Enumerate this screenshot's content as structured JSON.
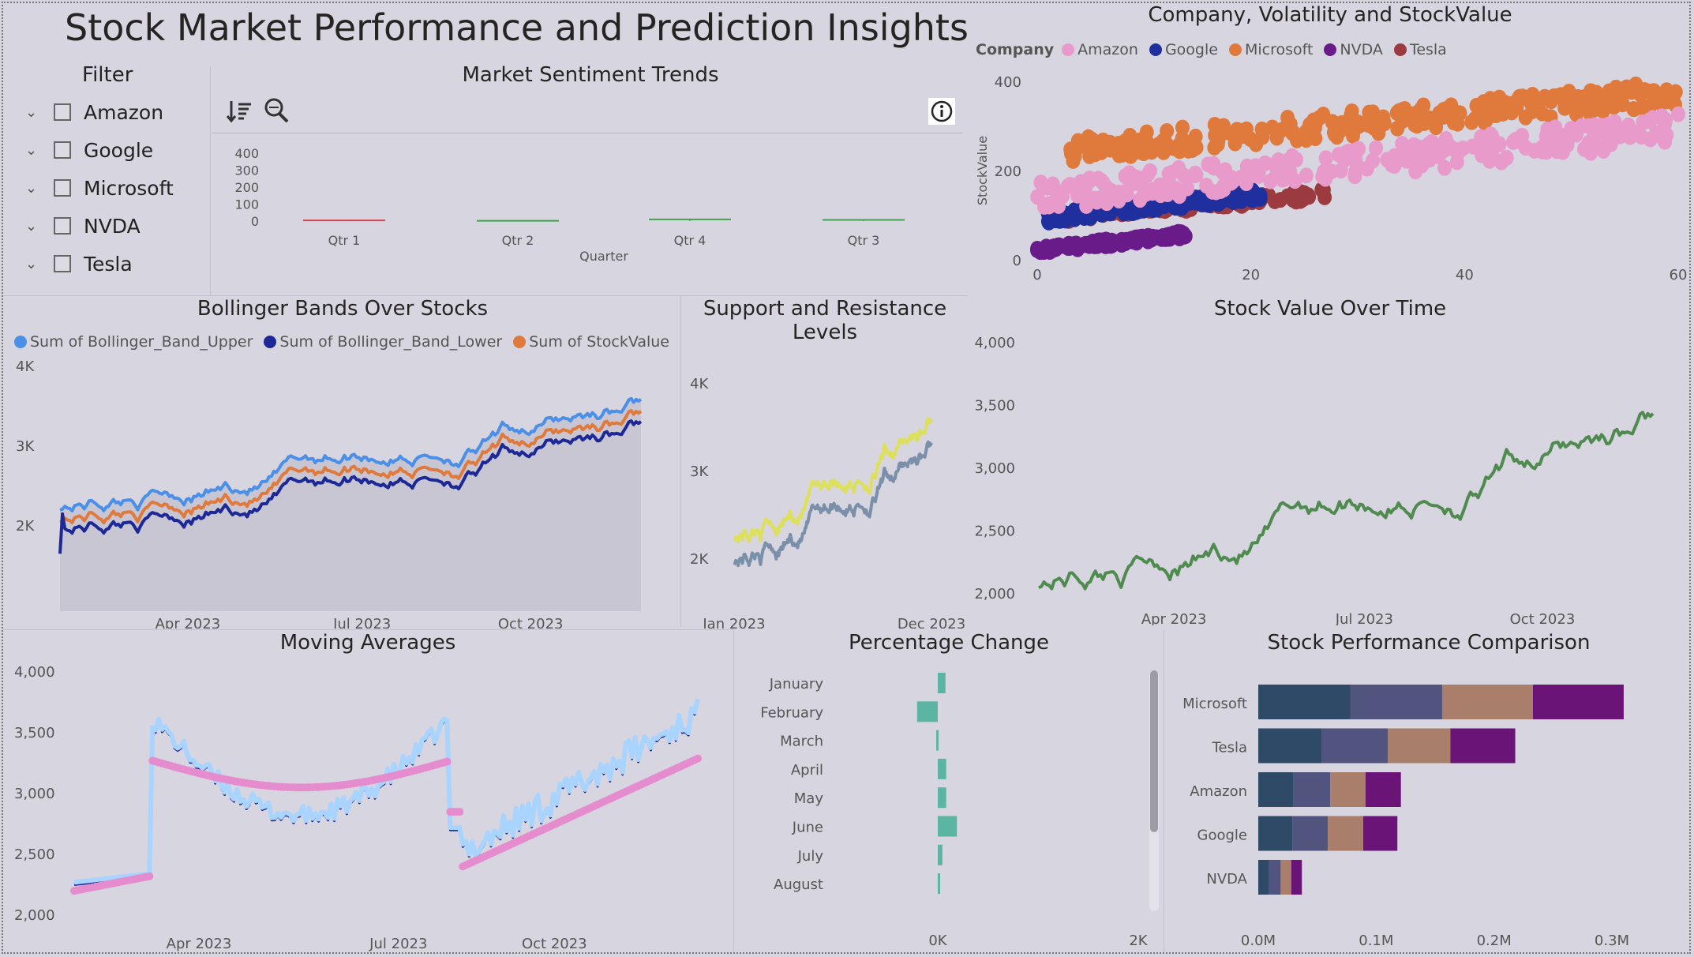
{
  "page_title": "Stock Market Performance and Prediction Insights",
  "filter": {
    "title": "Filter",
    "items": [
      "Amazon",
      "Google",
      "Microsoft",
      "NVDA",
      "Tesla"
    ]
  },
  "sentiment": {
    "title": "Market Sentiment Trends",
    "toolbar": {
      "sort_icon": "sort-descending-icon",
      "zoom_icon": "zoom-icon",
      "info_icon": "info-icon"
    },
    "x_title": "Quarter",
    "y_ticks": [
      "400",
      "300",
      "200",
      "100",
      "0"
    ],
    "categories": [
      "Qtr 1",
      "Qtr 2",
      "Qtr 4",
      "Qtr 3"
    ],
    "values": [
      4,
      2,
      10,
      7
    ],
    "colors": [
      "#d64550",
      "#3fa34d",
      "#3fa34d",
      "#3fa34d"
    ]
  },
  "volatility": {
    "title": "Company, Volatility and StockValue",
    "legend_title": "Company",
    "legend": [
      {
        "name": "Amazon",
        "color": "#e89acb"
      },
      {
        "name": "Google",
        "color": "#1f2f9e"
      },
      {
        "name": "Microsoft",
        "color": "#e07a3c"
      },
      {
        "name": "NVDA",
        "color": "#6a1b8a"
      },
      {
        "name": "Tesla",
        "color": "#9b3a3f"
      }
    ],
    "y_title": "StockValue",
    "x_ticks": [
      "0",
      "20",
      "40",
      "60"
    ],
    "y_ticks": [
      "400",
      "200",
      "0"
    ],
    "xlim": [
      0,
      60
    ],
    "ylim": [
      0,
      400
    ]
  },
  "bollinger": {
    "title": "Bollinger Bands Over Stocks",
    "legend": [
      {
        "name": "Sum of Bollinger_Band_Upper",
        "color": "#4a8fe8"
      },
      {
        "name": "Sum of Bollinger_Band_Lower",
        "color": "#1c2896"
      },
      {
        "name": "Sum of StockValue",
        "color": "#e07a3c"
      }
    ],
    "y_ticks": [
      "4K",
      "3K",
      "2K"
    ],
    "x_ticks": [
      "Apr 2023",
      "Jul 2023",
      "Oct 2023"
    ]
  },
  "support": {
    "title_line1": "Support and Resistance",
    "title_line2": "Levels",
    "y_ticks": [
      "4K",
      "3K",
      "2K"
    ],
    "x_ticks": [
      "Jan 2023",
      "Dec 2023"
    ],
    "colors": {
      "resistance": "#dde05a",
      "support": "#7a8fa8"
    }
  },
  "stock_value": {
    "title": "Stock Value Over Time",
    "y_ticks": [
      "4,000",
      "3,500",
      "3,000",
      "2,500",
      "2,000"
    ],
    "x_ticks": [
      "Apr 2023",
      "Jul 2023",
      "Oct 2023"
    ],
    "color": "#4f8a4f"
  },
  "moving_avg": {
    "title": "Moving Averages",
    "y_ticks": [
      "4,000",
      "3,500",
      "3,000",
      "2,500",
      "2,000"
    ],
    "x_ticks": [
      "Apr 2023",
      "Jul 2023",
      "Oct 2023"
    ],
    "colors": {
      "short": "#a8d4ff",
      "short_dark": "#1c2896",
      "long": "#e58ccf"
    }
  },
  "pct_change": {
    "title": "Percentage Change",
    "months": [
      "January",
      "February",
      "March",
      "April",
      "May",
      "June",
      "July",
      "August"
    ],
    "values": [
      100,
      -270,
      -20,
      110,
      110,
      250,
      60,
      20
    ],
    "x_ticks": [
      "0K",
      "2K"
    ],
    "color": "#5bb5a2"
  },
  "comparison": {
    "title": "Stock Performance Comparison",
    "chart_data": {
      "type": "bar",
      "categories": [
        "Microsoft",
        "Tesla",
        "Amazon",
        "Google",
        "NVDA"
      ],
      "series": [
        {
          "values": [
            0.078,
            0.054,
            0.03,
            0.029,
            0.009
          ],
          "color": "#2f4a67"
        },
        {
          "values": [
            0.078,
            0.056,
            0.031,
            0.03,
            0.01
          ],
          "color": "#525480"
        },
        {
          "values": [
            0.077,
            0.053,
            0.03,
            0.03,
            0.009
          ],
          "color": "#a97e6a"
        },
        {
          "values": [
            0.077,
            0.055,
            0.03,
            0.029,
            0.009
          ],
          "color": "#6a1478"
        }
      ],
      "x_ticks": [
        "0.0M",
        "0.1M",
        "0.2M",
        "0.3M"
      ],
      "xlim": [
        0,
        0.3
      ]
    }
  }
}
